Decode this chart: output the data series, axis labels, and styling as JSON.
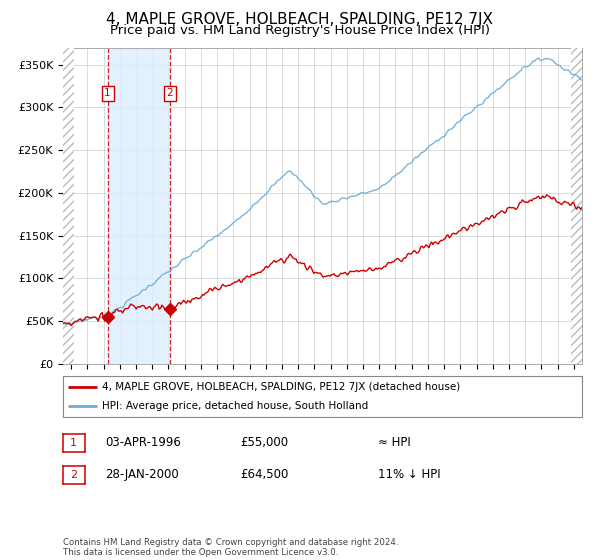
{
  "title": "4, MAPLE GROVE, HOLBEACH, SPALDING, PE12 7JX",
  "subtitle": "Price paid vs. HM Land Registry's House Price Index (HPI)",
  "title_fontsize": 11,
  "subtitle_fontsize": 9.5,
  "legend_line1": "4, MAPLE GROVE, HOLBEACH, SPALDING, PE12 7JX (detached house)",
  "legend_line2": "HPI: Average price, detached house, South Holland",
  "footer": "Contains HM Land Registry data © Crown copyright and database right 2024.\nThis data is licensed under the Open Government Licence v3.0.",
  "sale1_date": 1996.25,
  "sale1_price": 55000,
  "sale2_date": 2000.08,
  "sale2_price": 64500,
  "hpi_color": "#6baed6",
  "price_color": "#cc0000",
  "bg_color": "#ffffff",
  "shade_color": "#ddeeff",
  "ylim": [
    0,
    370000
  ],
  "xlim": [
    1993.5,
    2025.5
  ],
  "yticks": [
    0,
    50000,
    100000,
    150000,
    200000,
    250000,
    300000,
    350000
  ],
  "ytick_labels": [
    "£0",
    "£50K",
    "£100K",
    "£150K",
    "£200K",
    "£250K",
    "£300K",
    "£350K"
  ]
}
